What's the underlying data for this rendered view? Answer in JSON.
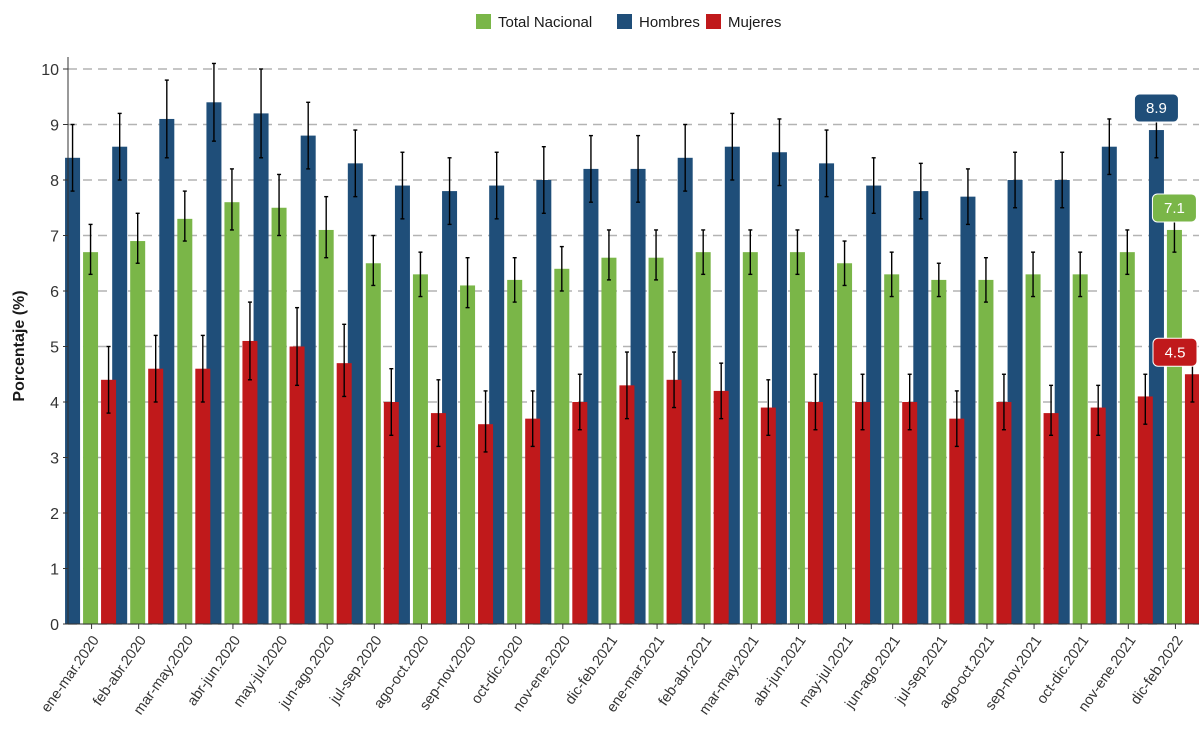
{
  "chart_data": {
    "type": "bar",
    "ylabel": "Porcentaje (%)",
    "xlabel": "",
    "ylim": [
      0,
      10
    ],
    "yticks": [
      0,
      1,
      2,
      3,
      4,
      5,
      6,
      7,
      8,
      9,
      10
    ],
    "grid": "horizontal dashed",
    "legend_position": "top",
    "categories": [
      "ene-mar.2020",
      "feb-abr.2020",
      "mar-may.2020",
      "abr-jun.2020",
      "may-jul.2020",
      "jun-ago.2020",
      "jul-sep.2020",
      "ago-oct.2020",
      "sep-nov.2020",
      "oct-dic.2020",
      "nov-ene.2020",
      "dic-feb.2021",
      "ene-mar.2021",
      "feb-abr.2021",
      "mar-may.2021",
      "abr-jun.2021",
      "may-jul.2021",
      "jun-ago.2021",
      "jul-sep.2021",
      "ago-oct.2021",
      "sep-nov.2021",
      "oct-dic.2021",
      "nov-ene.2021",
      "dic-feb.2022"
    ],
    "series": [
      {
        "name": "Hombres",
        "color": "#1f4e79",
        "values": [
          8.4,
          8.6,
          9.1,
          9.4,
          9.2,
          8.8,
          8.3,
          7.9,
          7.8,
          7.9,
          8.0,
          8.2,
          8.2,
          8.4,
          8.6,
          8.5,
          8.3,
          7.9,
          7.8,
          7.7,
          8.0,
          8.0,
          8.6,
          8.9
        ],
        "error_low": [
          7.8,
          8.0,
          8.4,
          8.7,
          8.4,
          8.2,
          7.7,
          7.3,
          7.2,
          7.3,
          7.4,
          7.6,
          7.6,
          7.8,
          8.0,
          7.9,
          7.7,
          7.4,
          7.3,
          7.2,
          7.5,
          7.5,
          8.1,
          8.4
        ],
        "error_high": [
          9.0,
          9.2,
          9.8,
          10.1,
          10.0,
          9.4,
          8.9,
          8.5,
          8.4,
          8.5,
          8.6,
          8.8,
          8.8,
          9.0,
          9.2,
          9.1,
          8.9,
          8.4,
          8.3,
          8.2,
          8.5,
          8.5,
          9.1,
          9.4
        ]
      },
      {
        "name": "Total Nacional",
        "color": "#7ab648",
        "values": [
          6.7,
          6.9,
          7.3,
          7.6,
          7.5,
          7.1,
          6.5,
          6.3,
          6.1,
          6.2,
          6.4,
          6.6,
          6.6,
          6.7,
          6.7,
          6.7,
          6.5,
          6.3,
          6.2,
          6.2,
          6.3,
          6.3,
          6.7,
          7.1
        ],
        "error_low": [
          6.3,
          6.5,
          6.9,
          7.1,
          7.0,
          6.6,
          6.1,
          5.9,
          5.7,
          5.8,
          6.0,
          6.2,
          6.2,
          6.3,
          6.3,
          6.3,
          6.1,
          5.9,
          5.9,
          5.8,
          5.9,
          5.9,
          6.3,
          6.7
        ],
        "error_high": [
          7.2,
          7.4,
          7.8,
          8.2,
          8.1,
          7.7,
          7.0,
          6.7,
          6.6,
          6.6,
          6.8,
          7.1,
          7.1,
          7.1,
          7.1,
          7.1,
          6.9,
          6.7,
          6.5,
          6.6,
          6.7,
          6.7,
          7.1,
          7.5
        ]
      },
      {
        "name": "Mujeres",
        "color": "#c0191b",
        "values": [
          4.4,
          4.6,
          4.6,
          5.1,
          5.0,
          4.7,
          4.0,
          3.8,
          3.6,
          3.7,
          4.0,
          4.3,
          4.4,
          4.2,
          3.9,
          4.0,
          4.0,
          4.0,
          3.7,
          4.0,
          3.8,
          3.9,
          4.1,
          4.5
        ],
        "error_low": [
          3.8,
          4.0,
          4.0,
          4.4,
          4.3,
          4.1,
          3.4,
          3.2,
          3.1,
          3.2,
          3.5,
          3.7,
          3.9,
          3.7,
          3.4,
          3.5,
          3.5,
          3.5,
          3.2,
          3.5,
          3.4,
          3.4,
          3.6,
          4.0
        ],
        "error_high": [
          5.0,
          5.2,
          5.2,
          5.8,
          5.7,
          5.4,
          4.6,
          4.4,
          4.2,
          4.2,
          4.5,
          4.9,
          4.9,
          4.7,
          4.4,
          4.5,
          4.5,
          4.5,
          4.2,
          4.5,
          4.3,
          4.3,
          4.5,
          5.0
        ]
      }
    ],
    "legend_order": [
      "Total Nacional",
      "Hombres",
      "Mujeres"
    ],
    "callouts": [
      {
        "series": "Hombres",
        "label": "8.9"
      },
      {
        "series": "Total Nacional",
        "label": "7.1"
      },
      {
        "series": "Mujeres",
        "label": "4.5"
      }
    ]
  }
}
